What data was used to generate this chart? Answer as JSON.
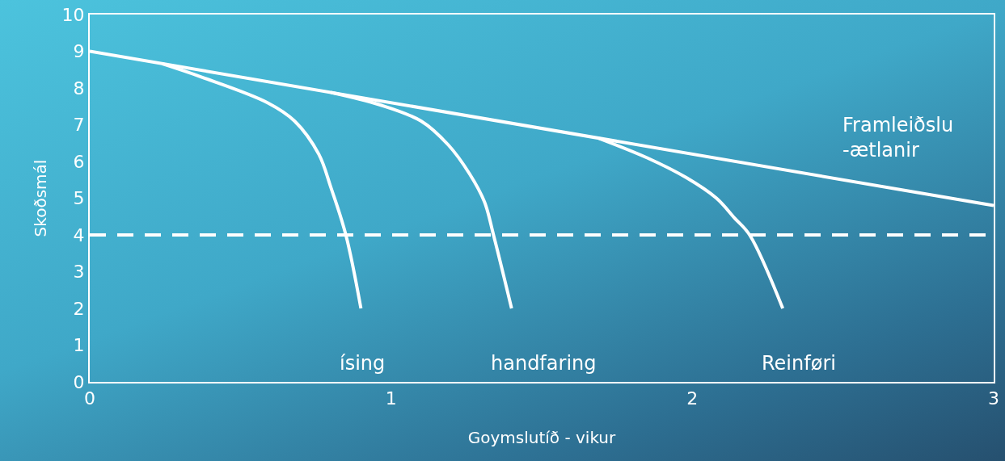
{
  "chart_data": {
    "type": "line",
    "xlabel": "Goymslutíð - vikur",
    "ylabel": "Skoðsmál",
    "xlim": [
      0,
      3
    ],
    "xticks": [
      0,
      1,
      2,
      3
    ],
    "ylim": [
      0,
      10
    ],
    "yticks": [
      0,
      1,
      2,
      3,
      4,
      5,
      6,
      7,
      8,
      9,
      10
    ],
    "grid": false,
    "legend": false,
    "marker": "none",
    "line_style": "solid",
    "series": [
      {
        "name": "Framleiðslu\n-ætlanir",
        "color": "#ffffff",
        "x": [
          0,
          3
        ],
        "values": [
          9,
          4.8
        ]
      },
      {
        "name": "ísing",
        "color": "#ffffff",
        "x": [
          0.24,
          0.37,
          0.59,
          0.68,
          0.76,
          0.8,
          0.85,
          0.9
        ],
        "values": [
          8.66,
          8.3,
          7.6,
          7.1,
          6.2,
          5.3,
          4.0,
          2.0
        ]
      },
      {
        "name": "handfaring",
        "color": "#ffffff",
        "x": [
          0.8,
          0.96,
          1.1,
          1.19,
          1.26,
          1.31,
          1.34,
          1.4
        ],
        "values": [
          7.88,
          7.55,
          7.1,
          6.45,
          5.67,
          4.9,
          4.0,
          2.0
        ]
      },
      {
        "name": "Reinføri",
        "color": "#ffffff",
        "x": [
          1.69,
          1.85,
          1.98,
          2.08,
          2.14,
          2.19,
          2.3
        ],
        "values": [
          6.63,
          6.1,
          5.56,
          5.0,
          4.46,
          4.0,
          2.0
        ]
      }
    ],
    "ref_lines": [
      {
        "axis": "y",
        "value": 4,
        "color": "#ffffff",
        "line_style": "dashed"
      }
    ]
  }
}
